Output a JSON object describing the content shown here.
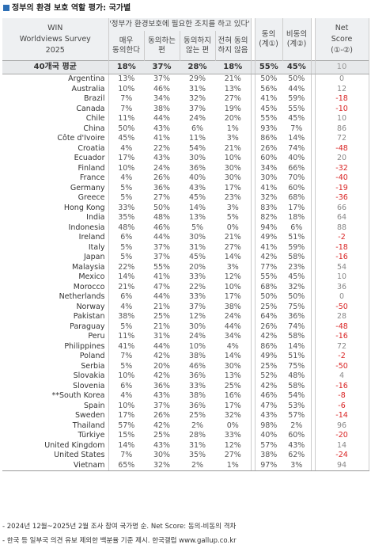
{
  "title": "정부의 환경 보호 역할 평가: 국가별",
  "header": {
    "row_header": [
      "WIN",
      "Worldviews Survey",
      "2025"
    ],
    "question": "'정부가 환경보호에 필요한 조치를 하고 있다'",
    "sub_columns": [
      [
        "매우",
        "동의한다"
      ],
      [
        "동의하는",
        "편"
      ],
      [
        "동의하지",
        "않는 편"
      ],
      [
        "전혀 동의",
        "하지 않음"
      ]
    ],
    "agree": [
      "동의",
      "(계①)"
    ],
    "disagree": [
      "비동의",
      "(계②)"
    ],
    "net": [
      "Net",
      "Score",
      "(①-②)"
    ]
  },
  "average": {
    "label": "40개국 평균",
    "v1": "18%",
    "v2": "37%",
    "v3": "28%",
    "v4": "18%",
    "agree": "55%",
    "disagree": "45%",
    "net": "10"
  },
  "rows": [
    {
      "country": "Argentina",
      "v1": "13%",
      "v2": "37%",
      "v3": "29%",
      "v4": "21%",
      "agree": "50%",
      "disagree": "50%",
      "net": "0"
    },
    {
      "country": "Australia",
      "v1": "10%",
      "v2": "46%",
      "v3": "31%",
      "v4": "13%",
      "agree": "56%",
      "disagree": "44%",
      "net": "12"
    },
    {
      "country": "Brazil",
      "v1": "7%",
      "v2": "34%",
      "v3": "32%",
      "v4": "27%",
      "agree": "41%",
      "disagree": "59%",
      "net": "-18"
    },
    {
      "country": "Canada",
      "v1": "7%",
      "v2": "38%",
      "v3": "37%",
      "v4": "19%",
      "agree": "45%",
      "disagree": "55%",
      "net": "-10"
    },
    {
      "country": "Chile",
      "v1": "11%",
      "v2": "44%",
      "v3": "24%",
      "v4": "20%",
      "agree": "55%",
      "disagree": "45%",
      "net": "10"
    },
    {
      "country": "China",
      "v1": "50%",
      "v2": "43%",
      "v3": "6%",
      "v4": "1%",
      "agree": "93%",
      "disagree": "7%",
      "net": "86"
    },
    {
      "country": "Côte d'Ivoire",
      "v1": "45%",
      "v2": "41%",
      "v3": "11%",
      "v4": "3%",
      "agree": "86%",
      "disagree": "14%",
      "net": "72"
    },
    {
      "country": "Croatia",
      "v1": "4%",
      "v2": "22%",
      "v3": "54%",
      "v4": "21%",
      "agree": "26%",
      "disagree": "74%",
      "net": "-48"
    },
    {
      "country": "Ecuador",
      "v1": "17%",
      "v2": "43%",
      "v3": "30%",
      "v4": "10%",
      "agree": "60%",
      "disagree": "40%",
      "net": "20"
    },
    {
      "country": "Finland",
      "v1": "10%",
      "v2": "24%",
      "v3": "36%",
      "v4": "30%",
      "agree": "34%",
      "disagree": "66%",
      "net": "-32"
    },
    {
      "country": "France",
      "v1": "4%",
      "v2": "26%",
      "v3": "40%",
      "v4": "30%",
      "agree": "30%",
      "disagree": "70%",
      "net": "-40"
    },
    {
      "country": "Germany",
      "v1": "5%",
      "v2": "36%",
      "v3": "43%",
      "v4": "17%",
      "agree": "41%",
      "disagree": "60%",
      "net": "-19"
    },
    {
      "country": "Greece",
      "v1": "5%",
      "v2": "27%",
      "v3": "45%",
      "v4": "23%",
      "agree": "32%",
      "disagree": "68%",
      "net": "-36"
    },
    {
      "country": "Hong Kong",
      "v1": "33%",
      "v2": "50%",
      "v3": "14%",
      "v4": "3%",
      "agree": "83%",
      "disagree": "17%",
      "net": "66"
    },
    {
      "country": "India",
      "v1": "35%",
      "v2": "48%",
      "v3": "13%",
      "v4": "5%",
      "agree": "82%",
      "disagree": "18%",
      "net": "64"
    },
    {
      "country": "Indonesia",
      "v1": "48%",
      "v2": "46%",
      "v3": "5%",
      "v4": "0%",
      "agree": "94%",
      "disagree": "6%",
      "net": "88"
    },
    {
      "country": "Ireland",
      "v1": "6%",
      "v2": "44%",
      "v3": "30%",
      "v4": "21%",
      "agree": "49%",
      "disagree": "51%",
      "net": "-2"
    },
    {
      "country": "Italy",
      "v1": "5%",
      "v2": "37%",
      "v3": "31%",
      "v4": "27%",
      "agree": "41%",
      "disagree": "59%",
      "net": "-18"
    },
    {
      "country": "Japan",
      "v1": "5%",
      "v2": "37%",
      "v3": "45%",
      "v4": "14%",
      "agree": "42%",
      "disagree": "58%",
      "net": "-16"
    },
    {
      "country": "Malaysia",
      "v1": "22%",
      "v2": "55%",
      "v3": "20%",
      "v4": "3%",
      "agree": "77%",
      "disagree": "23%",
      "net": "54"
    },
    {
      "country": "Mexico",
      "v1": "14%",
      "v2": "41%",
      "v3": "33%",
      "v4": "12%",
      "agree": "55%",
      "disagree": "45%",
      "net": "10"
    },
    {
      "country": "Morocco",
      "v1": "21%",
      "v2": "47%",
      "v3": "22%",
      "v4": "10%",
      "agree": "68%",
      "disagree": "32%",
      "net": "36"
    },
    {
      "country": "Netherlands",
      "v1": "6%",
      "v2": "44%",
      "v3": "33%",
      "v4": "17%",
      "agree": "50%",
      "disagree": "50%",
      "net": "0"
    },
    {
      "country": "Norway",
      "v1": "4%",
      "v2": "21%",
      "v3": "37%",
      "v4": "38%",
      "agree": "25%",
      "disagree": "75%",
      "net": "-50"
    },
    {
      "country": "Pakistan",
      "v1": "38%",
      "v2": "25%",
      "v3": "12%",
      "v4": "24%",
      "agree": "64%",
      "disagree": "36%",
      "net": "28"
    },
    {
      "country": "Paraguay",
      "v1": "5%",
      "v2": "21%",
      "v3": "30%",
      "v4": "44%",
      "agree": "26%",
      "disagree": "74%",
      "net": "-48"
    },
    {
      "country": "Peru",
      "v1": "11%",
      "v2": "31%",
      "v3": "24%",
      "v4": "34%",
      "agree": "42%",
      "disagree": "58%",
      "net": "-16"
    },
    {
      "country": "Philippines",
      "v1": "41%",
      "v2": "44%",
      "v3": "10%",
      "v4": "4%",
      "agree": "86%",
      "disagree": "14%",
      "net": "72"
    },
    {
      "country": "Poland",
      "v1": "7%",
      "v2": "42%",
      "v3": "38%",
      "v4": "14%",
      "agree": "49%",
      "disagree": "51%",
      "net": "-2"
    },
    {
      "country": "Serbia",
      "v1": "5%",
      "v2": "20%",
      "v3": "46%",
      "v4": "30%",
      "agree": "25%",
      "disagree": "75%",
      "net": "-50"
    },
    {
      "country": "Slovakia",
      "v1": "10%",
      "v2": "42%",
      "v3": "36%",
      "v4": "13%",
      "agree": "52%",
      "disagree": "48%",
      "net": "4"
    },
    {
      "country": "Slovenia",
      "v1": "6%",
      "v2": "36%",
      "v3": "33%",
      "v4": "25%",
      "agree": "42%",
      "disagree": "58%",
      "net": "-16"
    },
    {
      "country": "**South Korea",
      "v1": "4%",
      "v2": "43%",
      "v3": "38%",
      "v4": "16%",
      "agree": "46%",
      "disagree": "54%",
      "net": "-8"
    },
    {
      "country": "Spain",
      "v1": "10%",
      "v2": "37%",
      "v3": "36%",
      "v4": "17%",
      "agree": "47%",
      "disagree": "53%",
      "net": "-6"
    },
    {
      "country": "Sweden",
      "v1": "17%",
      "v2": "26%",
      "v3": "25%",
      "v4": "32%",
      "agree": "43%",
      "disagree": "57%",
      "net": "-14"
    },
    {
      "country": "Thailand",
      "v1": "57%",
      "v2": "42%",
      "v3": "2%",
      "v4": "0%",
      "agree": "98%",
      "disagree": "2%",
      "net": "96"
    },
    {
      "country": "Türkiye",
      "v1": "15%",
      "v2": "25%",
      "v3": "28%",
      "v4": "33%",
      "agree": "40%",
      "disagree": "60%",
      "net": "-20"
    },
    {
      "country": "United Kingdom",
      "v1": "14%",
      "v2": "43%",
      "v3": "31%",
      "v4": "12%",
      "agree": "57%",
      "disagree": "43%",
      "net": "14"
    },
    {
      "country": "United States",
      "v1": "7%",
      "v2": "30%",
      "v3": "35%",
      "v4": "27%",
      "agree": "38%",
      "disagree": "62%",
      "net": "-24"
    },
    {
      "country": "Vietnam",
      "v1": "65%",
      "v2": "32%",
      "v3": "2%",
      "v4": "1%",
      "agree": "97%",
      "disagree": "3%",
      "net": "94"
    }
  ],
  "notes": [
    "- 2024년 12월~2025년 2월 조사 참여 국가명 순. Net Score: 동의-비동의 격차",
    "- 한국 등 일부국 의견 유보 제외한 백분율 기준 제시. 한국갤럽 www.gallup.co.kr"
  ],
  "colors": {
    "negative": "#d92424",
    "header_bg": "#eef0f2",
    "accent": "#2d6fb5"
  }
}
